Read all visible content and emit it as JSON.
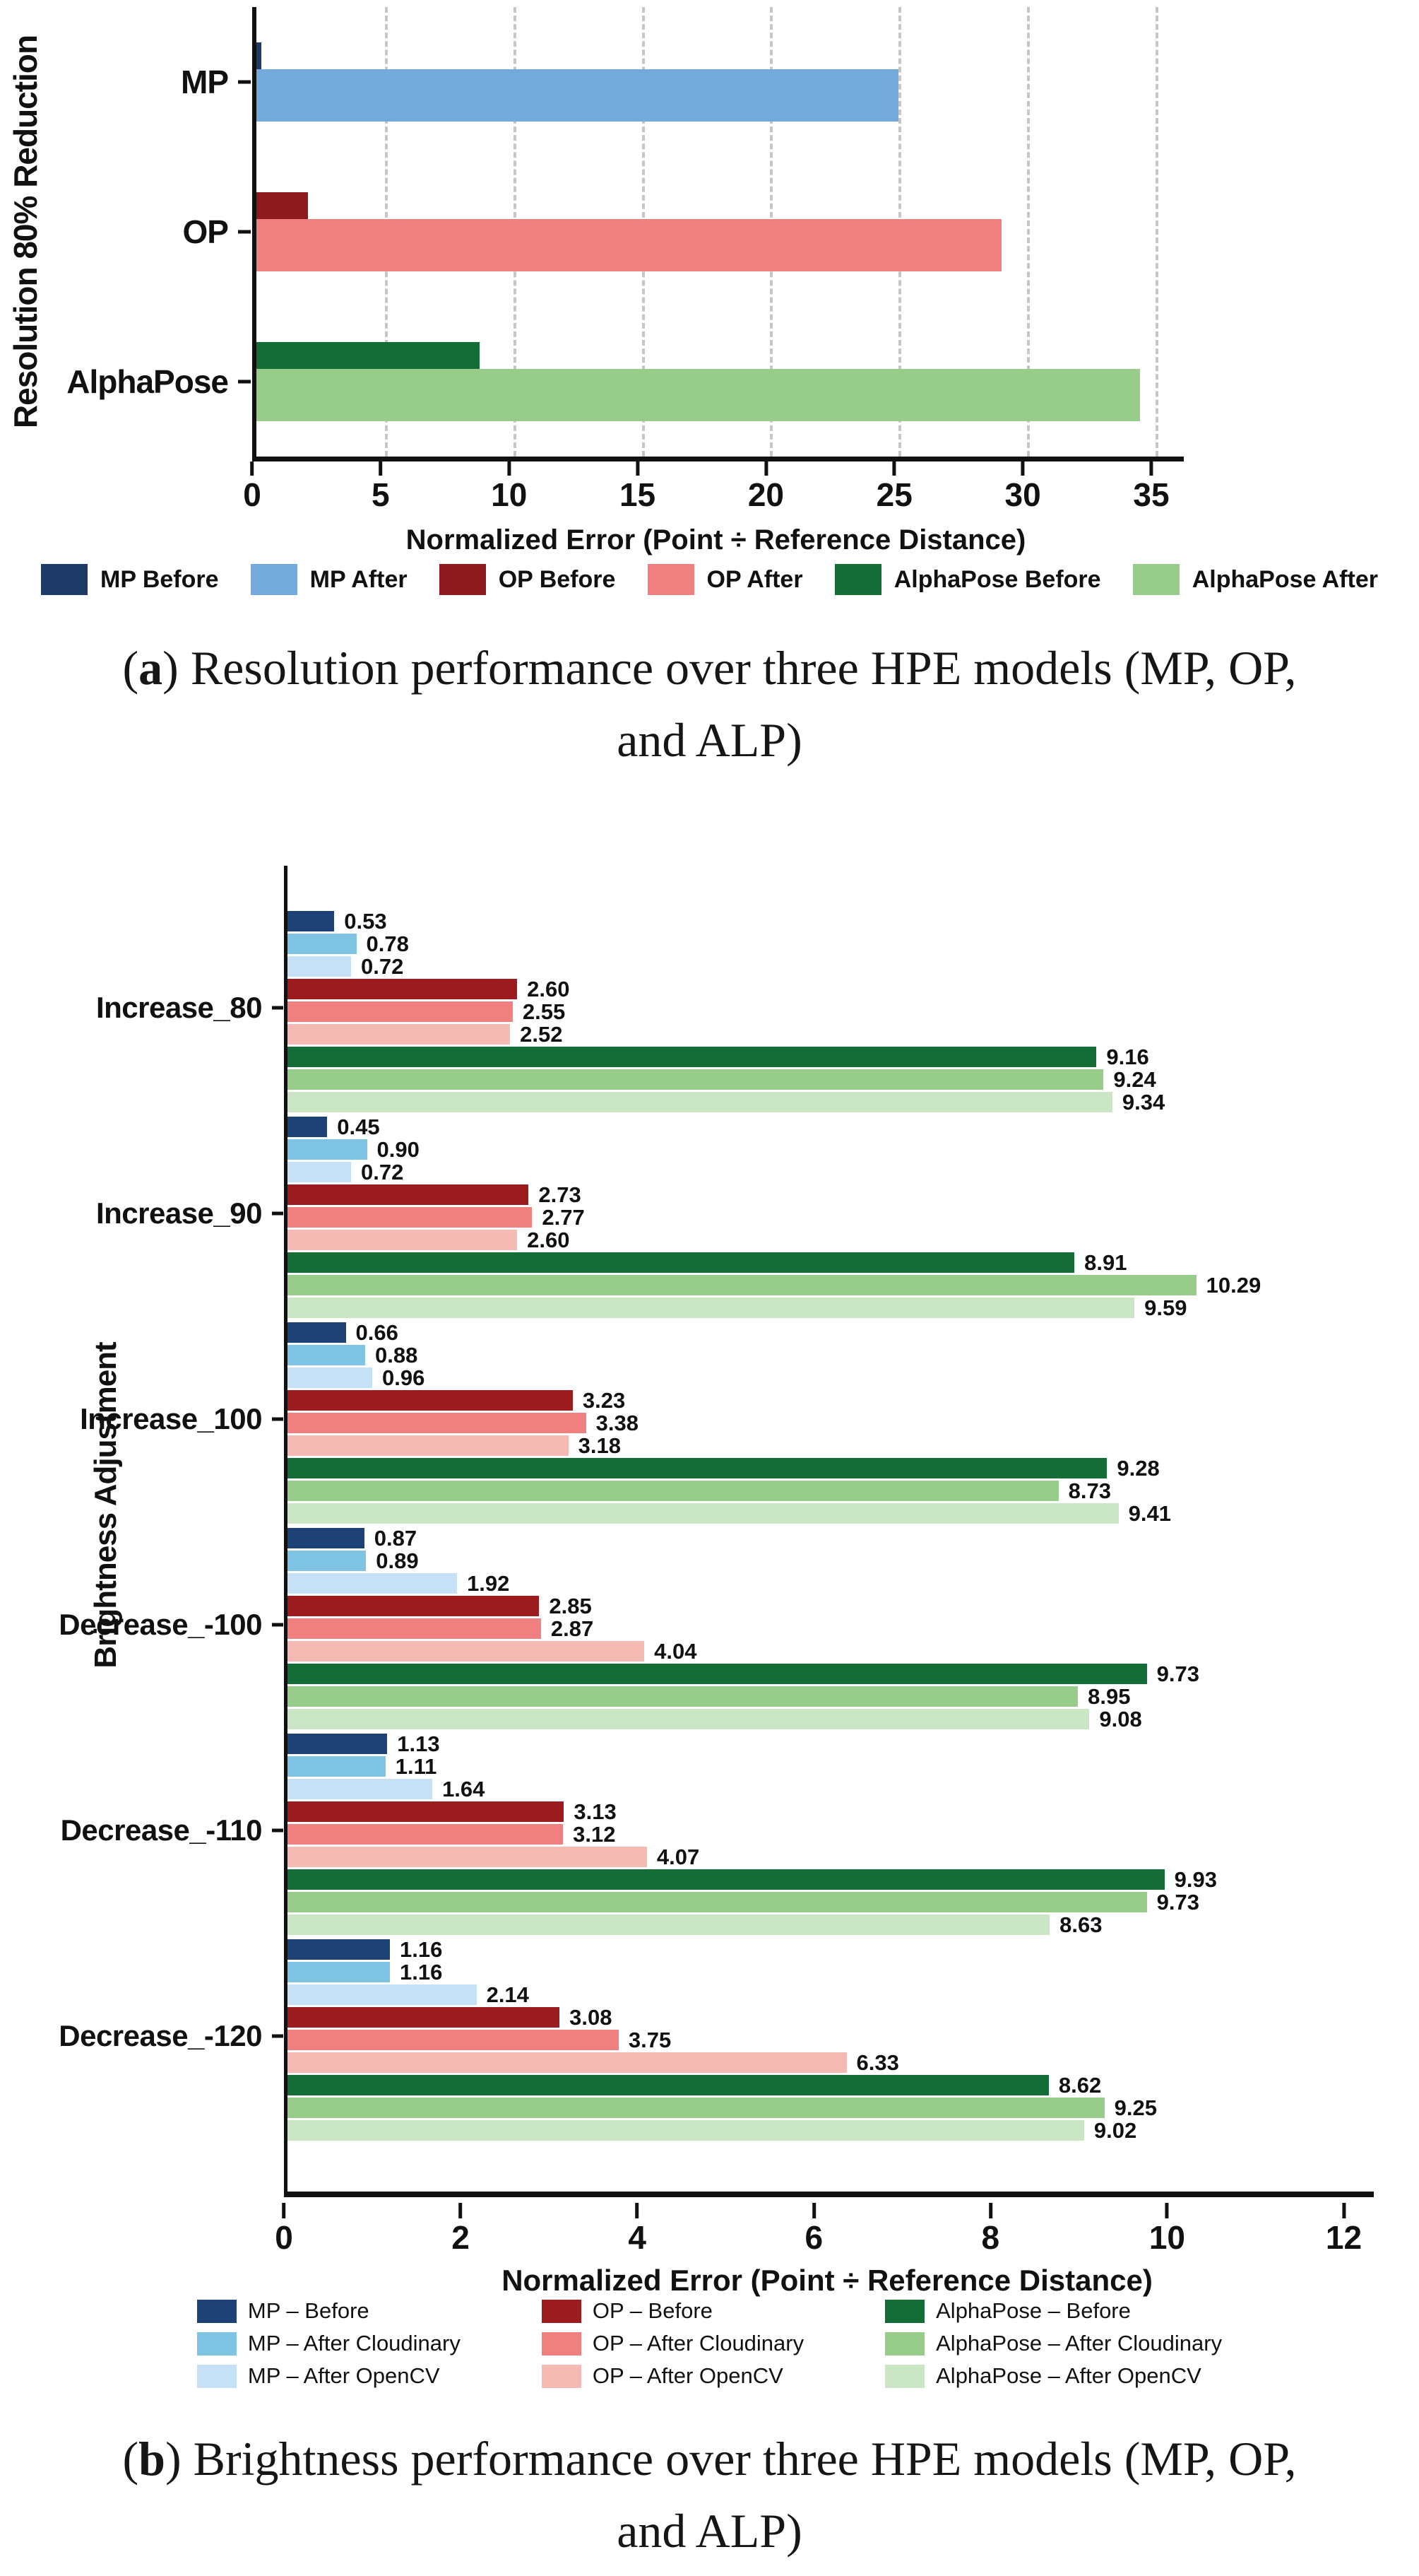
{
  "chart_data": [
    {
      "id": "a",
      "type": "bar",
      "orientation": "horizontal",
      "ylabel": "Resolution 80% Reduction",
      "xlabel": "Normalized Error (Point ÷ Reference Distance)",
      "x_ticks": [
        0,
        5,
        10,
        15,
        20,
        25,
        30,
        35
      ],
      "x_max": 36.1,
      "grid": "dashed-vertical",
      "legend_position": "bottom",
      "value_labels": false,
      "series": [
        {
          "name": "MP Before",
          "color": "#1d3b66"
        },
        {
          "name": "MP After",
          "color": "#74a9dc"
        },
        {
          "name": "OP Before",
          "color": "#8e1a1e"
        },
        {
          "name": "OP After",
          "color": "#f08080"
        },
        {
          "name": "AlphaPose Before",
          "color": "#146c36"
        },
        {
          "name": "AlphaPose After",
          "color": "#97cc8b"
        }
      ],
      "groups": [
        {
          "label": "MP",
          "before": 0.2,
          "after": 25.0
        },
        {
          "label": "OP",
          "before": 2.0,
          "after": 29.0
        },
        {
          "label": "AlphaPose",
          "before": 8.7,
          "after": 34.4
        }
      ]
    },
    {
      "id": "b",
      "type": "bar",
      "orientation": "horizontal",
      "ylabel": "Brightness Adjustment",
      "xlabel": "Normalized Error (Point ÷ Reference Distance)",
      "x_ticks": [
        0,
        2,
        4,
        6,
        8,
        10,
        12
      ],
      "x_max": 12.3,
      "grid": "none",
      "legend_position": "bottom",
      "value_labels": true,
      "series": [
        {
          "name": "MP – Before",
          "color": "#1e4276"
        },
        {
          "name": "MP – After Cloudinary",
          "color": "#7fc4e3"
        },
        {
          "name": "MP – After OpenCV",
          "color": "#c6e1f6"
        },
        {
          "name": "OP – Before",
          "color": "#9a1c1f"
        },
        {
          "name": "OP – After Cloudinary",
          "color": "#f08080"
        },
        {
          "name": "OP – After OpenCV",
          "color": "#f5bab4"
        },
        {
          "name": "AlphaPose – Before",
          "color": "#146c36"
        },
        {
          "name": "AlphaPose – After Cloudinary",
          "color": "#97cc8b"
        },
        {
          "name": "AlphaPose – After OpenCV",
          "color": "#cbe6c5"
        }
      ],
      "groups": [
        {
          "label": "Increase_80",
          "values": [
            0.53,
            0.78,
            0.72,
            2.6,
            2.55,
            2.52,
            9.16,
            9.24,
            9.34
          ]
        },
        {
          "label": "Increase_90",
          "values": [
            0.45,
            0.9,
            0.72,
            2.73,
            2.77,
            2.6,
            8.91,
            10.29,
            9.59
          ]
        },
        {
          "label": "Increase_100",
          "values": [
            0.66,
            0.88,
            0.96,
            3.23,
            3.38,
            3.18,
            9.28,
            8.73,
            9.41
          ]
        },
        {
          "label": "Decrease_-100",
          "values": [
            0.87,
            0.89,
            1.92,
            2.85,
            2.87,
            4.04,
            9.73,
            8.95,
            9.08
          ]
        },
        {
          "label": "Decrease_-110",
          "values": [
            1.13,
            1.11,
            1.64,
            3.13,
            3.12,
            4.07,
            9.93,
            9.73,
            8.63
          ]
        },
        {
          "label": "Decrease_-120",
          "values": [
            1.16,
            1.16,
            2.14,
            3.08,
            3.75,
            6.33,
            8.62,
            9.25,
            9.02
          ]
        }
      ]
    }
  ],
  "captions": [
    {
      "open": "(",
      "label": "a",
      "close": ")",
      "line1": "Resolution performance over three HPE models (MP, OP,",
      "line2": "and ALP)"
    },
    {
      "open": "(",
      "label": "b",
      "close": ")",
      "line1": "Brightness performance over three HPE models (MP, OP,",
      "line2": "and ALP)"
    }
  ]
}
